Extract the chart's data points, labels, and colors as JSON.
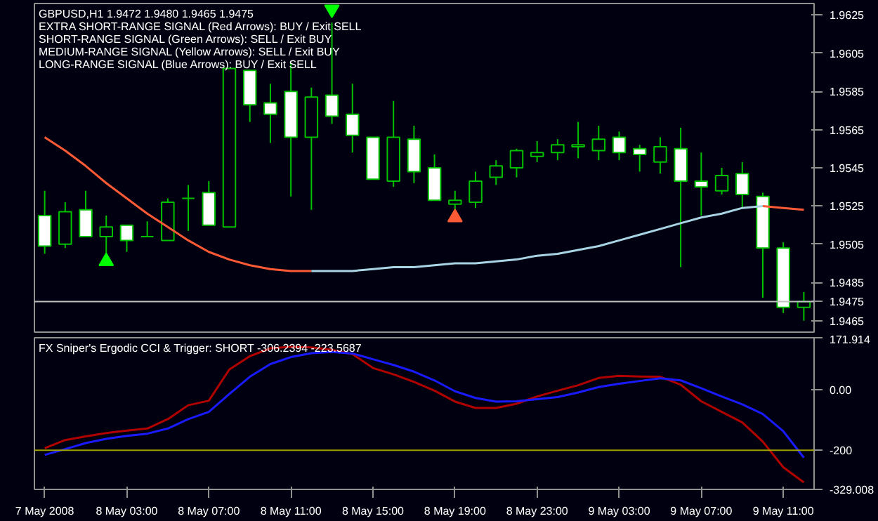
{
  "chart_data": [
    {
      "type": "candlestick",
      "title": "GBPUSD,H1  1.9472 1.9480 1.9465 1.9475",
      "annotations": [
        "EXTRA SHORT-RANGE SIGNAL (Red Arrows): BUY / Exit SELL",
        "SHORT-RANGE SIGNAL (Green Arrows): SELL / Exit BUY",
        "MEDIUM-RANGE SIGNAL (Yellow Arrows): SELL / Exit BUY",
        "LONG-RANGE SIGNAL (Blue Arrows): BUY / Exit SELL"
      ],
      "categories": [
        null,
        null,
        null,
        null,
        null,
        null,
        null,
        null,
        null,
        null,
        null,
        null,
        null,
        null,
        null,
        null,
        null,
        null,
        null,
        null,
        null,
        null,
        null,
        null,
        null,
        null,
        null,
        null,
        null,
        null,
        null,
        null,
        null,
        null,
        null,
        null,
        null,
        null
      ],
      "color": "#00c000",
      "ohlc": [
        [
          1.952,
          1.9533,
          1.95,
          1.9504
        ],
        [
          1.9505,
          1.9527,
          1.9503,
          1.9522
        ],
        [
          1.9523,
          1.9533,
          1.9509,
          1.9509
        ],
        [
          1.9509,
          1.952,
          1.9499,
          1.9514
        ],
        [
          1.9515,
          1.9515,
          1.9501,
          1.9507
        ],
        [
          1.9509,
          1.9517,
          1.9509,
          1.9509
        ],
        [
          1.9507,
          1.9529,
          1.9507,
          1.9527
        ],
        [
          1.9529,
          1.9536,
          1.9512,
          1.9529
        ],
        [
          1.9532,
          1.9538,
          1.9515,
          1.9515
        ],
        [
          1.9514,
          1.9597,
          1.9514,
          1.9597
        ],
        [
          1.9596,
          1.9596,
          1.9569,
          1.9578
        ],
        [
          1.9579,
          1.9589,
          1.9558,
          1.9573
        ],
        [
          1.9585,
          1.96,
          1.953,
          1.9561
        ],
        [
          1.9561,
          1.9587,
          1.9523,
          1.9582
        ],
        [
          1.9583,
          1.9621,
          1.9568,
          1.9572
        ],
        [
          1.9573,
          1.9589,
          1.9553,
          1.9562
        ],
        [
          1.9561,
          1.9561,
          1.9539,
          1.9539
        ],
        [
          1.9538,
          1.958,
          1.9535,
          1.9561
        ],
        [
          1.956,
          1.9567,
          1.9537,
          1.9543
        ],
        [
          1.9545,
          1.9552,
          1.9528,
          1.9528
        ],
        [
          1.9526,
          1.9533,
          1.9523,
          1.9528
        ],
        [
          1.9527,
          1.9543,
          1.9524,
          1.9538
        ],
        [
          1.954,
          1.9549,
          1.9536,
          1.9546
        ],
        [
          1.9545,
          1.9555,
          1.954,
          1.9554
        ],
        [
          1.9551,
          1.9559,
          1.9548,
          1.9553
        ],
        [
          1.9553,
          1.956,
          1.9549,
          1.9557
        ],
        [
          1.9556,
          1.9569,
          1.955,
          1.9557
        ],
        [
          1.9554,
          1.9567,
          1.9549,
          1.956
        ],
        [
          1.9561,
          1.9564,
          1.9549,
          1.9553
        ],
        [
          1.9555,
          1.9557,
          1.9543,
          1.9552
        ],
        [
          1.9548,
          1.9561,
          1.9542,
          1.9556
        ],
        [
          1.9555,
          1.9566,
          1.9493,
          1.9538
        ],
        [
          1.9538,
          1.9553,
          1.952,
          1.9535
        ],
        [
          1.9533,
          1.9545,
          1.9531,
          1.9541
        ],
        [
          1.9542,
          1.9548,
          1.9524,
          1.9531
        ],
        [
          1.953,
          1.9532,
          1.9477,
          1.9503
        ],
        [
          1.9503,
          1.9506,
          1.9469,
          1.9472
        ],
        [
          1.9472,
          1.948,
          1.9465,
          1.9475
        ]
      ],
      "series": [
        {
          "type": "line",
          "color": "#ff5a36",
          "values": [
            1.9561,
            1.9554,
            1.9546,
            1.9537,
            1.9529,
            1.9521,
            1.9514,
            1.9507,
            1.9501,
            1.9497,
            1.9494,
            1.9492,
            1.9491,
            1.9491,
            null,
            null,
            null,
            null,
            null,
            null,
            null,
            null,
            null,
            null,
            null,
            null,
            null,
            null,
            null,
            null,
            null,
            null,
            null,
            null,
            null,
            1.9525,
            1.9524,
            1.9523
          ]
        },
        {
          "type": "line",
          "color": "#a9d4e4",
          "values": [
            null,
            null,
            null,
            null,
            null,
            null,
            null,
            null,
            null,
            null,
            null,
            null,
            null,
            1.9491,
            1.9491,
            1.9491,
            1.9492,
            1.9493,
            1.9493,
            1.9494,
            1.9495,
            1.9495,
            1.9496,
            1.9497,
            1.9499,
            1.95,
            1.9502,
            1.9504,
            1.9507,
            1.951,
            1.9513,
            1.9516,
            1.9519,
            1.9521,
            1.9524,
            1.9525,
            null,
            null
          ]
        },
        {
          "type": "scatter",
          "marker": "triangle",
          "color": "#00ff00",
          "values": [
            null,
            null,
            null,
            1.9496,
            null,
            null,
            null,
            null,
            null,
            null,
            null,
            null,
            null,
            null,
            null,
            null,
            null,
            null,
            null,
            null,
            null,
            null,
            null,
            null,
            null,
            null,
            null,
            null,
            null,
            null,
            null,
            null,
            null,
            null,
            null,
            null,
            null,
            null
          ]
        },
        {
          "type": "scatter",
          "marker": "triangle",
          "color": "#ff5a36",
          "values": [
            null,
            null,
            null,
            null,
            null,
            null,
            null,
            null,
            null,
            null,
            null,
            null,
            null,
            null,
            null,
            null,
            null,
            null,
            null,
            null,
            1.9519,
            null,
            null,
            null,
            null,
            null,
            null,
            null,
            null,
            null,
            null,
            null,
            null,
            null,
            null,
            null,
            null,
            null
          ]
        },
        {
          "type": "scatter",
          "marker": "triangle",
          "color": "#00ff00",
          "values": [
            null,
            null,
            null,
            null,
            null,
            null,
            null,
            null,
            null,
            null,
            null,
            null,
            null,
            null,
            1.9628,
            null,
            null,
            null,
            null,
            null,
            null,
            null,
            null,
            null,
            null,
            null,
            null,
            null,
            null,
            null,
            null,
            null,
            null,
            null,
            null,
            null,
            null,
            null
          ]
        }
      ],
      "ylim": [
        1.9459,
        1.9631
      ],
      "yticks": [
        1.9465,
        1.9485,
        1.9505,
        1.9525,
        1.9545,
        1.9565,
        1.9585,
        1.9605,
        1.9625
      ],
      "ref_lines": [
        {
          "axis": "y",
          "value": 1.9475,
          "label": "1.9475",
          "color": "#c0c0c0"
        }
      ],
      "tick_labels": "y"
    },
    {
      "type": "line",
      "title": "FX Sniper's Ergodic CCI & Trigger: SHORT -306.2394 -223.5687",
      "categories": [
        "7 May 2008",
        null,
        null,
        null,
        "8 May 03:00",
        null,
        null,
        null,
        "8 May 07:00",
        null,
        null,
        null,
        "8 May 11:00",
        null,
        null,
        null,
        "8 May 15:00",
        null,
        null,
        null,
        "8 May 19:00",
        null,
        null,
        null,
        "8 May 23:00",
        null,
        null,
        null,
        "9 May 03:00",
        null,
        null,
        null,
        "9 May 07:00",
        null,
        null,
        null,
        "9 May 11:00",
        null
      ],
      "series": [
        {
          "color": "#b00000",
          "values": [
            -193,
            -166,
            -154,
            -143,
            -135,
            -128,
            -97,
            -51,
            -36,
            67,
            111,
            137,
            142,
            140,
            132,
            118,
            72,
            51,
            26,
            -3,
            -39,
            -60,
            -60,
            -46,
            -22,
            -3,
            15,
            39,
            46,
            44,
            43,
            17,
            -38,
            -73,
            -108,
            -171,
            -256,
            -306
          ]
        },
        {
          "color": "#1a1aff",
          "values": [
            -215,
            -196,
            -176,
            -162,
            -152,
            -145,
            -128,
            -97,
            -73,
            -14,
            43,
            85,
            108,
            121,
            125,
            120,
            101,
            82,
            60,
            31,
            -5,
            -27,
            -39,
            -38,
            -31,
            -24,
            -9,
            9,
            20,
            29,
            38,
            31,
            5,
            -22,
            -48,
            -80,
            -137,
            -224
          ]
        }
      ],
      "ylim": [
        -329.008,
        171.914
      ],
      "yticks": [
        {
          "value": 171.914,
          "label": "171.914"
        },
        {
          "value": 0,
          "label": "0.00"
        },
        {
          "value": -329.008,
          "label": "-329.008"
        }
      ],
      "ref_lines": [
        {
          "axis": "y",
          "value": -200,
          "label": "-200",
          "color": "#a0a000"
        }
      ]
    }
  ]
}
